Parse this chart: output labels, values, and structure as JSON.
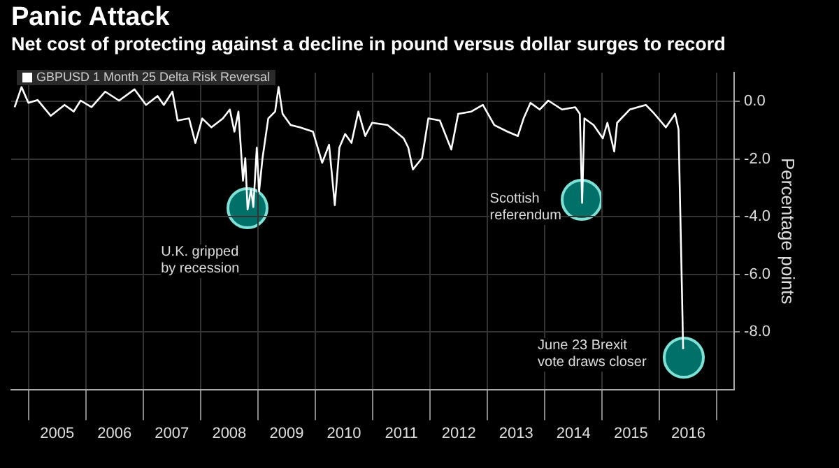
{
  "chart_data": {
    "type": "line",
    "title": "Panic Attack",
    "subtitle": "Net cost of protecting against a decline in pound versus dollar surges to record",
    "ylabel": "Percentage points",
    "x": [
      2004.76,
      2004.88,
      2005.0,
      2005.16,
      2005.39,
      2005.63,
      2005.79,
      2005.91,
      2006.1,
      2006.34,
      2006.58,
      2006.85,
      2007.05,
      2007.25,
      2007.36,
      2007.51,
      2007.6,
      2007.8,
      2007.91,
      2008.03,
      2008.19,
      2008.39,
      2008.51,
      2008.59,
      2008.66,
      2008.74,
      2008.78,
      2008.82,
      2008.88,
      2008.92,
      2008.98,
      2009.02,
      2009.08,
      2009.18,
      2009.3,
      2009.36,
      2009.43,
      2009.57,
      2009.73,
      2009.96,
      2010.12,
      2010.24,
      2010.34,
      2010.42,
      2010.52,
      2010.63,
      2010.75,
      2010.87,
      2010.99,
      2011.26,
      2011.54,
      2011.62,
      2011.7,
      2011.86,
      2011.97,
      2012.17,
      2012.37,
      2012.49,
      2012.72,
      2012.92,
      2013.12,
      2013.35,
      2013.53,
      2013.63,
      2013.75,
      2013.91,
      2014.06,
      2014.3,
      2014.53,
      2014.61,
      2014.65,
      2014.69,
      2014.85,
      2015.01,
      2015.09,
      2015.21,
      2015.26,
      2015.48,
      2015.76,
      2015.91,
      2016.11,
      2016.27,
      2016.33,
      2016.39,
      2016.41
    ],
    "series": [
      {
        "name": "GBPUSD 1 Month 25 Delta Risk Reversal",
        "color": "#ffffff",
        "values": [
          -0.2,
          0.5,
          -0.05,
          0.05,
          -0.5,
          -0.12,
          -0.35,
          0.03,
          -0.2,
          0.34,
          0.03,
          0.42,
          -0.12,
          0.19,
          -0.12,
          0.34,
          -0.66,
          -0.59,
          -1.44,
          -0.59,
          -0.9,
          -0.59,
          -0.28,
          -1.05,
          -0.35,
          -2.75,
          -1.97,
          -3.75,
          -3.05,
          -3.67,
          -1.6,
          -3.13,
          -1.97,
          -0.59,
          -0.35,
          0.5,
          -0.43,
          -0.82,
          -0.9,
          -1.05,
          -2.13,
          -1.5,
          -3.6,
          -1.6,
          -1.13,
          -1.44,
          -0.35,
          -1.2,
          -0.74,
          -0.82,
          -1.28,
          -1.6,
          -2.36,
          -1.97,
          -0.59,
          -0.66,
          -1.67,
          -0.43,
          -0.35,
          -0.12,
          -0.82,
          -1.05,
          -1.2,
          -0.59,
          -0.05,
          -0.28,
          0.03,
          -0.28,
          -0.2,
          -0.43,
          -3.52,
          -0.59,
          -0.82,
          -1.28,
          -0.74,
          -1.74,
          -0.74,
          -0.28,
          -0.12,
          -0.43,
          -0.9,
          -0.43,
          -0.97,
          -6.6,
          -8.6
        ]
      }
    ],
    "xlim": [
      2004.7,
      2017.3
    ],
    "xticks": [
      {
        "value": 2005,
        "label": null
      },
      {
        "value": 2005.5,
        "label": "2005"
      },
      {
        "value": 2006,
        "label": null
      },
      {
        "value": 2006.5,
        "label": "2006"
      },
      {
        "value": 2007,
        "label": null
      },
      {
        "value": 2007.5,
        "label": "2007"
      },
      {
        "value": 2008,
        "label": null
      },
      {
        "value": 2008.5,
        "label": "2008"
      },
      {
        "value": 2009,
        "label": null
      },
      {
        "value": 2009.5,
        "label": "2009"
      },
      {
        "value": 2010,
        "label": null
      },
      {
        "value": 2010.5,
        "label": "2010"
      },
      {
        "value": 2011,
        "label": null
      },
      {
        "value": 2011.5,
        "label": "2011"
      },
      {
        "value": 2012,
        "label": null
      },
      {
        "value": 2012.5,
        "label": "2012"
      },
      {
        "value": 2013,
        "label": null
      },
      {
        "value": 2013.5,
        "label": "2013"
      },
      {
        "value": 2014,
        "label": null
      },
      {
        "value": 2014.5,
        "label": "2014"
      },
      {
        "value": 2015,
        "label": null
      },
      {
        "value": 2015.5,
        "label": "2015"
      },
      {
        "value": 2016,
        "label": null
      },
      {
        "value": 2016.5,
        "label": "2016"
      },
      {
        "value": 2017,
        "label": null
      }
    ],
    "ylim": [
      -10,
      1
    ],
    "yticks": [
      {
        "value": 0,
        "label": "0.0"
      },
      {
        "value": -2,
        "label": "-2.0"
      },
      {
        "value": -4,
        "label": "-4.0"
      },
      {
        "value": -6,
        "label": "-6.0"
      },
      {
        "value": -8,
        "label": "-8.0"
      }
    ],
    "grid": true,
    "legend": "top left",
    "marker": "none",
    "line_style": "solid",
    "annotations": [
      {
        "text": "U.K. gripped\nby recession",
        "x": 2008.82,
        "y": -3.7
      },
      {
        "text": "Scottish\nreferendum",
        "x": 2014.65,
        "y": -3.4
      },
      {
        "text": "June 23 Brexit\nvote draws closer",
        "x": 2016.41,
        "y": -8.9
      }
    ]
  }
}
